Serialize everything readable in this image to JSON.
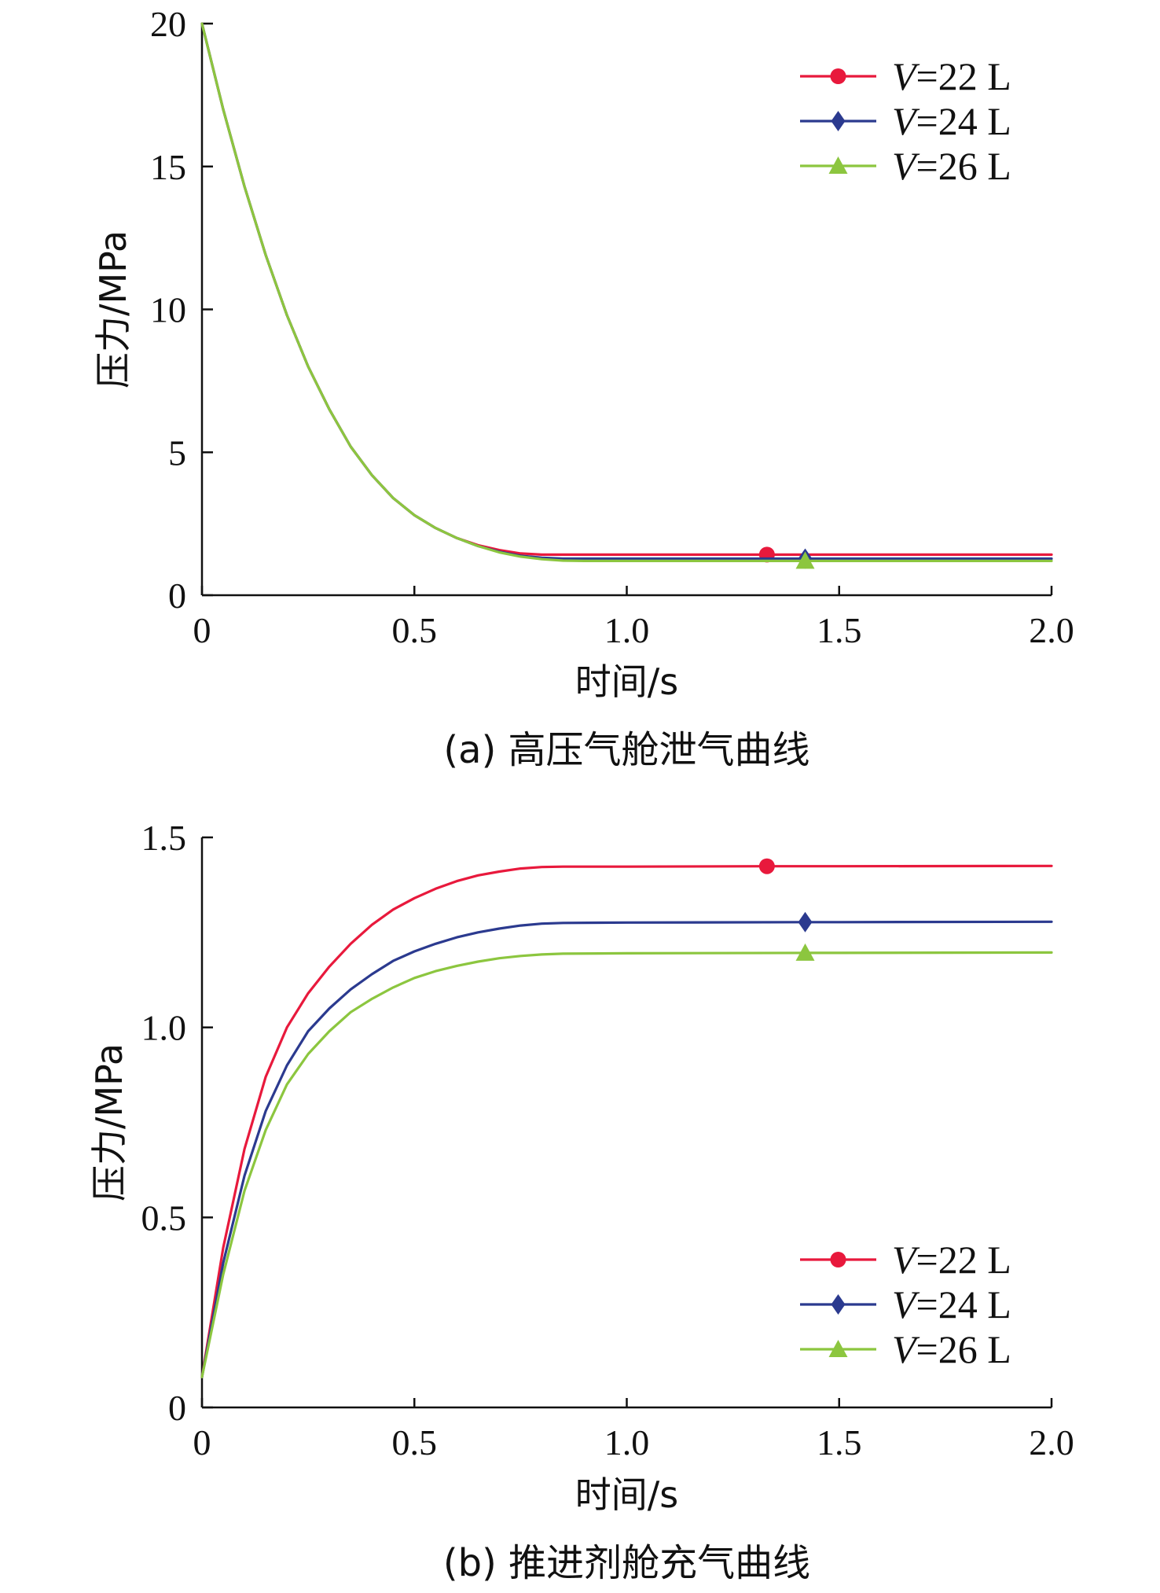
{
  "chart_data": [
    {
      "type": "line",
      "caption": "(a) 高压气舱泄气曲线",
      "xlabel": "时间/s",
      "ylabel": "压力/MPa",
      "xlim": [
        0,
        2.0
      ],
      "ylim": [
        0,
        20
      ],
      "xticks": [
        "0",
        "0.5",
        "1.0",
        "1.5",
        "2.0"
      ],
      "yticks": [
        "0",
        "5",
        "10",
        "15",
        "20"
      ],
      "legend_position": "top-right",
      "series": [
        {
          "name_prefix": "V",
          "name_suffix": "=22 L",
          "color": "#e8193c",
          "marker": "circle",
          "x": [
            0,
            0.05,
            0.1,
            0.15,
            0.2,
            0.25,
            0.3,
            0.35,
            0.4,
            0.45,
            0.5,
            0.55,
            0.6,
            0.65,
            0.7,
            0.75,
            0.8,
            0.9,
            1.0,
            1.33,
            1.5,
            2.0
          ],
          "values": [
            20,
            17.0,
            14.3,
            11.9,
            9.8,
            8.0,
            6.5,
            5.2,
            4.2,
            3.4,
            2.8,
            2.35,
            2.0,
            1.75,
            1.58,
            1.46,
            1.42,
            1.42,
            1.42,
            1.42,
            1.42,
            1.42
          ],
          "marker_x": 1.33,
          "marker_y": 1.42
        },
        {
          "name_prefix": "V",
          "name_suffix": "=24 L",
          "color": "#2b3a8f",
          "marker": "diamond",
          "x": [
            0,
            0.05,
            0.1,
            0.15,
            0.2,
            0.25,
            0.3,
            0.35,
            0.4,
            0.45,
            0.5,
            0.55,
            0.6,
            0.65,
            0.7,
            0.75,
            0.8,
            0.85,
            0.9,
            1.0,
            1.42,
            1.5,
            2.0
          ],
          "values": [
            20,
            17.0,
            14.3,
            11.9,
            9.8,
            8.0,
            6.5,
            5.2,
            4.2,
            3.4,
            2.8,
            2.35,
            2.0,
            1.72,
            1.52,
            1.38,
            1.31,
            1.28,
            1.28,
            1.28,
            1.28,
            1.28,
            1.28
          ],
          "marker_x": 1.42,
          "marker_y": 1.28
        },
        {
          "name_prefix": "V",
          "name_suffix": "=26 L",
          "color": "#8cc63f",
          "marker": "triangle",
          "x": [
            0,
            0.05,
            0.1,
            0.15,
            0.2,
            0.25,
            0.3,
            0.35,
            0.4,
            0.45,
            0.5,
            0.55,
            0.6,
            0.65,
            0.7,
            0.75,
            0.8,
            0.85,
            0.9,
            1.0,
            1.42,
            1.5,
            2.0
          ],
          "values": [
            20,
            17.0,
            14.3,
            11.9,
            9.8,
            8.0,
            6.5,
            5.2,
            4.2,
            3.4,
            2.8,
            2.35,
            2.0,
            1.72,
            1.5,
            1.35,
            1.26,
            1.21,
            1.2,
            1.2,
            1.2,
            1.2,
            1.2
          ],
          "marker_x": 1.42,
          "marker_y": 1.2
        }
      ]
    },
    {
      "type": "line",
      "caption": "(b) 推进剂舱充气曲线",
      "xlabel": "时间/s",
      "ylabel": "压力/MPa",
      "xlim": [
        0,
        2.0
      ],
      "ylim": [
        0,
        1.5
      ],
      "xticks": [
        "0",
        "0.5",
        "1.0",
        "1.5",
        "2.0"
      ],
      "yticks": [
        "0",
        "0.5",
        "1.0",
        "1.5"
      ],
      "legend_position": "bottom-right",
      "series": [
        {
          "name_prefix": "V",
          "name_suffix": "=22 L",
          "color": "#e8193c",
          "marker": "circle",
          "x": [
            0,
            0.05,
            0.1,
            0.15,
            0.2,
            0.25,
            0.3,
            0.35,
            0.4,
            0.45,
            0.5,
            0.55,
            0.6,
            0.65,
            0.7,
            0.75,
            0.8,
            0.85,
            1.0,
            1.33,
            1.5,
            2.0
          ],
          "values": [
            0.08,
            0.42,
            0.68,
            0.87,
            1.0,
            1.09,
            1.16,
            1.22,
            1.27,
            1.31,
            1.34,
            1.365,
            1.385,
            1.4,
            1.41,
            1.418,
            1.422,
            1.423,
            1.423,
            1.424,
            1.424,
            1.425
          ],
          "marker_x": 1.33,
          "marker_y": 1.424
        },
        {
          "name_prefix": "V",
          "name_suffix": "=24 L",
          "color": "#2b3a8f",
          "marker": "diamond",
          "x": [
            0,
            0.05,
            0.1,
            0.15,
            0.2,
            0.25,
            0.3,
            0.35,
            0.4,
            0.45,
            0.5,
            0.55,
            0.6,
            0.65,
            0.7,
            0.75,
            0.8,
            0.85,
            1.0,
            1.42,
            1.5,
            2.0
          ],
          "values": [
            0.08,
            0.38,
            0.61,
            0.78,
            0.9,
            0.99,
            1.05,
            1.1,
            1.14,
            1.175,
            1.2,
            1.22,
            1.237,
            1.25,
            1.26,
            1.268,
            1.273,
            1.275,
            1.276,
            1.277,
            1.277,
            1.278
          ],
          "marker_x": 1.42,
          "marker_y": 1.277
        },
        {
          "name_prefix": "V",
          "name_suffix": "=26 L",
          "color": "#8cc63f",
          "marker": "triangle",
          "x": [
            0,
            0.05,
            0.1,
            0.15,
            0.2,
            0.25,
            0.3,
            0.35,
            0.4,
            0.45,
            0.5,
            0.55,
            0.6,
            0.65,
            0.7,
            0.75,
            0.8,
            0.85,
            1.0,
            1.42,
            1.5,
            2.0
          ],
          "values": [
            0.08,
            0.35,
            0.57,
            0.73,
            0.85,
            0.93,
            0.99,
            1.04,
            1.075,
            1.105,
            1.13,
            1.148,
            1.162,
            1.173,
            1.182,
            1.188,
            1.192,
            1.194,
            1.195,
            1.196,
            1.196,
            1.197
          ],
          "marker_x": 1.42,
          "marker_y": 1.196
        }
      ]
    }
  ]
}
